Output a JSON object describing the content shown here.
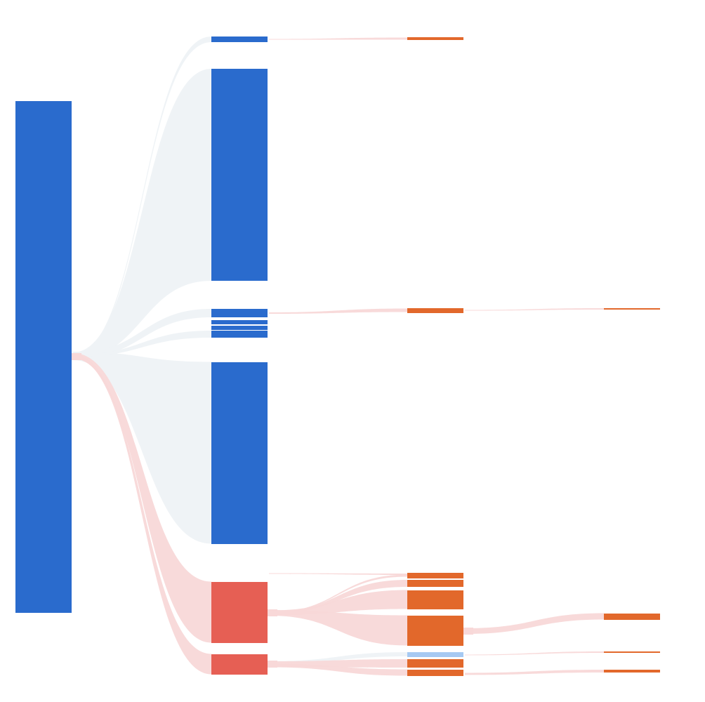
{
  "colors": {
    "root": "#2a6bcd",
    "blue": "#2a6bcd",
    "red": "#e65f54",
    "orange": "#e2682b",
    "light_blue": "#a6c9f2",
    "blue_flow": "#eef2f5",
    "red_flow": "#f8d8d8",
    "background": "#ffffff"
  },
  "diagram": {
    "type": "sankey",
    "title": "",
    "labels_shown": false,
    "levels": 4,
    "nodes": [
      {
        "id": "root",
        "level": 0,
        "color": "root"
      },
      {
        "id": "b1",
        "level": 1,
        "color": "blue"
      },
      {
        "id": "b2",
        "level": 1,
        "color": "blue"
      },
      {
        "id": "b3",
        "level": 1,
        "color": "blue"
      },
      {
        "id": "b4",
        "level": 1,
        "color": "blue"
      },
      {
        "id": "b5",
        "level": 1,
        "color": "blue"
      },
      {
        "id": "b6",
        "level": 1,
        "color": "blue"
      },
      {
        "id": "b7",
        "level": 1,
        "color": "blue"
      },
      {
        "id": "r1",
        "level": 1,
        "color": "red"
      },
      {
        "id": "r2",
        "level": 1,
        "color": "red"
      },
      {
        "id": "o1",
        "level": 2,
        "color": "orange"
      },
      {
        "id": "o2",
        "level": 2,
        "color": "orange"
      },
      {
        "id": "o3",
        "level": 2,
        "color": "orange"
      },
      {
        "id": "o4",
        "level": 2,
        "color": "orange"
      },
      {
        "id": "o5",
        "level": 2,
        "color": "orange"
      },
      {
        "id": "o6",
        "level": 2,
        "color": "orange"
      },
      {
        "id": "lb1",
        "level": 2,
        "color": "light_blue"
      },
      {
        "id": "o7",
        "level": 2,
        "color": "orange"
      },
      {
        "id": "o8",
        "level": 2,
        "color": "orange"
      },
      {
        "id": "e1",
        "level": 3,
        "color": "orange"
      },
      {
        "id": "e2",
        "level": 3,
        "color": "orange"
      },
      {
        "id": "e3",
        "level": 3,
        "color": "orange"
      },
      {
        "id": "e4",
        "level": 3,
        "color": "orange"
      }
    ],
    "links": [
      {
        "source": "root",
        "target": "b1",
        "value": 2,
        "kind": "blue"
      },
      {
        "source": "root",
        "target": "b2",
        "value": 91,
        "kind": "blue"
      },
      {
        "source": "root",
        "target": "b3",
        "value": 11,
        "kind": "blue"
      },
      {
        "source": "root",
        "target": "b7",
        "value": 78,
        "kind": "blue"
      },
      {
        "source": "root",
        "target": "b6",
        "value": 2,
        "kind": "blue"
      },
      {
        "source": "root",
        "target": "r1",
        "value": 26,
        "kind": "red"
      },
      {
        "source": "root",
        "target": "r2",
        "value": 9,
        "kind": "red"
      },
      {
        "source": "b1",
        "target": "o1",
        "value": 1,
        "kind": "red"
      },
      {
        "source": "b3",
        "target": "o2",
        "value": 2,
        "kind": "red"
      },
      {
        "source": "b6",
        "target": "o3",
        "value": 1,
        "kind": "red"
      },
      {
        "source": "r1",
        "target": "o3",
        "value": 1,
        "kind": "red"
      },
      {
        "source": "r1",
        "target": "o4",
        "value": 3,
        "kind": "red"
      },
      {
        "source": "r1",
        "target": "o5",
        "value": 8,
        "kind": "red"
      },
      {
        "source": "r1",
        "target": "o6",
        "value": 13,
        "kind": "red"
      },
      {
        "source": "r2",
        "target": "lb1",
        "value": 2,
        "kind": "blue"
      },
      {
        "source": "r2",
        "target": "o7",
        "value": 4,
        "kind": "red"
      },
      {
        "source": "r2",
        "target": "o8",
        "value": 3,
        "kind": "red"
      },
      {
        "source": "o2",
        "target": "e1",
        "value": 1,
        "kind": "red"
      },
      {
        "source": "o6",
        "target": "e2",
        "value": 3,
        "kind": "red"
      },
      {
        "source": "lb1",
        "target": "e3",
        "value": 1,
        "kind": "red"
      },
      {
        "source": "o8",
        "target": "e4",
        "value": 1,
        "kind": "red"
      }
    ]
  }
}
